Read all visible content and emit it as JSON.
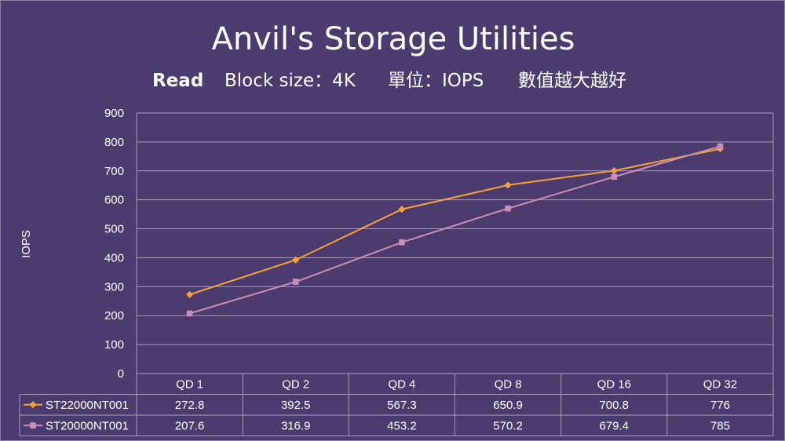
{
  "title": "Anvil's Storage Utilities",
  "subtitle": {
    "mode": "Read",
    "block": "Block size：4K",
    "unit": "單位：IOPS",
    "note": "數值越大越好"
  },
  "chart_data": {
    "type": "line",
    "title": "Anvil's Storage Utilities",
    "ylabel": "IOPS",
    "xlabel": "",
    "ylim": [
      0,
      900
    ],
    "yticks": [
      0,
      100,
      200,
      300,
      400,
      500,
      600,
      700,
      800,
      900
    ],
    "grid": true,
    "legend": "data-table",
    "categories": [
      "QD 1",
      "QD 2",
      "QD 4",
      "QD 8",
      "QD 16",
      "QD 32"
    ],
    "series": [
      {
        "name": "ST22000NT001",
        "values": [
          272.8,
          392.5,
          567.3,
          650.9,
          700.8,
          776
        ],
        "color": "#f5a33a",
        "marker": "diamond"
      },
      {
        "name": "ST20000NT001",
        "values": [
          207.6,
          316.9,
          453.2,
          570.2,
          679.4,
          785
        ],
        "color": "#c98fb8",
        "marker": "square"
      }
    ],
    "table_values": [
      [
        "272.8",
        "392.5",
        "567.3",
        "650.9",
        "700.8",
        "776"
      ],
      [
        "207.6",
        "316.9",
        "453.2",
        "570.2",
        "679.4",
        "785"
      ]
    ]
  },
  "colors": {
    "background": "#4b3b6e",
    "grid": "#a89bbf",
    "text": "#ffffff"
  }
}
